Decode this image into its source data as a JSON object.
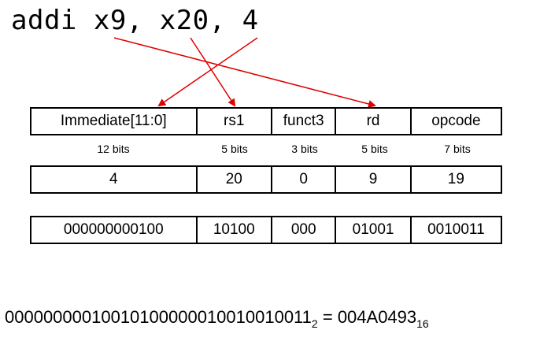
{
  "instruction": {
    "text": "addi x9, x20, 4"
  },
  "fields": {
    "names": [
      "Immediate[11:0]",
      "rs1",
      "funct3",
      "rd",
      "opcode"
    ],
    "bit_widths": [
      "12 bits",
      "5 bits",
      "3 bits",
      "5 bits",
      "7 bits"
    ],
    "decimal_values": [
      "4",
      "20",
      "0",
      "9",
      "19"
    ],
    "binary_values": [
      "000000000100",
      "10100",
      "000",
      "01001",
      "0010011"
    ]
  },
  "result": {
    "binary": "00000000010010100000010010010011",
    "binary_subscript": "2",
    "equals": "=",
    "hex": "004A0493",
    "hex_subscript": "16"
  },
  "colors": {
    "arrow": "#e00000",
    "border": "#000000"
  }
}
